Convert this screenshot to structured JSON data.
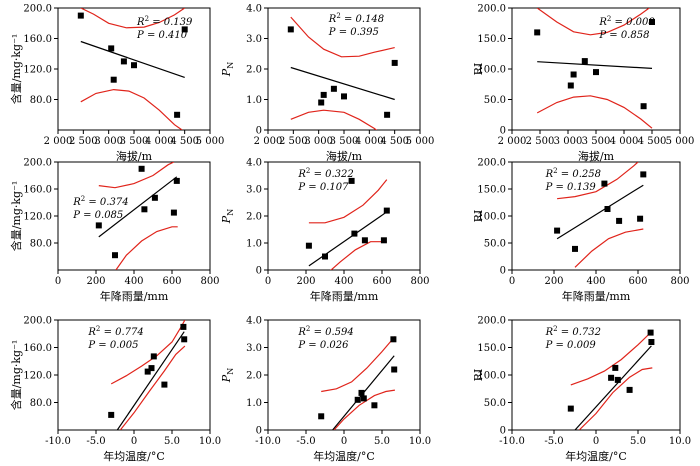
{
  "chart_data": [
    {
      "type": "scatter",
      "xlabel": "海拔/m",
      "ylabel": "含量/mg·kg⁻¹",
      "xlim": [
        2000,
        5000
      ],
      "ylim": [
        40,
        200
      ],
      "xticks": [
        2000,
        2500,
        3000,
        3500,
        4000,
        4500,
        5000
      ],
      "xtick_labels": [
        "2 000",
        "2 500",
        "3 000",
        "3 500",
        "4 000",
        "4 500",
        "5 000"
      ],
      "yticks": [
        80,
        120,
        160,
        200
      ],
      "ytick_labels": [
        "80.0",
        "120.0",
        "160.0",
        "200.0"
      ],
      "stat_lines": [
        "R² = 0.139",
        "P = 0.410"
      ],
      "stats_loc": "top-right",
      "x": [
        2450,
        3050,
        3100,
        3300,
        3500,
        4350,
        4500
      ],
      "y": [
        190,
        147,
        106,
        130,
        125,
        60,
        172
      ],
      "fit": [
        [
          2450,
          156
        ],
        [
          4500,
          109
        ]
      ],
      "ci_upper": [
        [
          2450,
          200
        ],
        [
          2700,
          192
        ],
        [
          3000,
          180
        ],
        [
          3350,
          174
        ],
        [
          3700,
          175
        ],
        [
          4000,
          181
        ],
        [
          4300,
          191
        ],
        [
          4500,
          200
        ]
      ],
      "ci_lower": [
        [
          2450,
          77
        ],
        [
          2750,
          88
        ],
        [
          3100,
          93
        ],
        [
          3400,
          91
        ],
        [
          3700,
          82
        ],
        [
          4000,
          66
        ],
        [
          4300,
          47
        ],
        [
          4450,
          40
        ]
      ]
    },
    {
      "type": "scatter",
      "xlabel": "海拔/m",
      "ylabel": "PN",
      "xlim": [
        2000,
        5000
      ],
      "ylim": [
        0,
        4
      ],
      "xticks": [
        2000,
        2500,
        3000,
        3500,
        4000,
        4500,
        5000
      ],
      "xtick_labels": [
        "2 000",
        "2 500",
        "3 000",
        "3 500",
        "4 000",
        "4 500",
        "5 000"
      ],
      "yticks": [
        0,
        1,
        2,
        3,
        4
      ],
      "ytick_labels": [
        "0",
        "1.0",
        "2.0",
        "3.0",
        "4.0"
      ],
      "stat_lines": [
        "R² = 0.148",
        "P = 0.395"
      ],
      "stats_loc": "top-center",
      "x": [
        2450,
        3050,
        3100,
        3300,
        3500,
        4350,
        4500
      ],
      "y": [
        3.3,
        0.9,
        1.15,
        1.35,
        1.1,
        0.5,
        2.2
      ],
      "fit": [
        [
          2450,
          2.05
        ],
        [
          4500,
          1.0
        ]
      ],
      "ci_upper": [
        [
          2450,
          3.7
        ],
        [
          2800,
          3.05
        ],
        [
          3100,
          2.65
        ],
        [
          3450,
          2.4
        ],
        [
          3800,
          2.42
        ],
        [
          4100,
          2.55
        ],
        [
          4500,
          2.7
        ]
      ],
      "ci_lower": [
        [
          2450,
          0.35
        ],
        [
          2800,
          0.58
        ],
        [
          3100,
          0.65
        ],
        [
          3500,
          0.58
        ],
        [
          3800,
          0.35
        ],
        [
          4100,
          0.05
        ],
        [
          4400,
          -0.35
        ]
      ]
    },
    {
      "type": "scatter",
      "xlabel": "海拔/m",
      "ylabel": "RI",
      "xlim": [
        2000,
        5000
      ],
      "ylim": [
        0,
        200
      ],
      "xticks": [
        2000,
        2500,
        3000,
        3500,
        4000,
        4500,
        5000
      ],
      "xtick_labels": [
        "2 000",
        "2 500",
        "3 000",
        "3 500",
        "4 000",
        "4 500",
        "5 000"
      ],
      "yticks": [
        0,
        50,
        100,
        150,
        200
      ],
      "ytick_labels": [
        "0",
        "50.0",
        "100.0",
        "150.0",
        "200.0"
      ],
      "stat_lines": [
        "R² = 0.008",
        "P = 0.858"
      ],
      "stats_loc": "top-right",
      "x": [
        2450,
        3050,
        3100,
        3300,
        3500,
        4350,
        4500
      ],
      "y": [
        160,
        73,
        91,
        113,
        95,
        39,
        177
      ],
      "fit": [
        [
          2450,
          112
        ],
        [
          4500,
          101
        ]
      ],
      "ci_upper": [
        [
          2450,
          200
        ],
        [
          2800,
          177
        ],
        [
          3100,
          161
        ],
        [
          3400,
          156
        ],
        [
          3700,
          160
        ],
        [
          4000,
          172
        ],
        [
          4300,
          190
        ],
        [
          4450,
          200
        ]
      ],
      "ci_lower": [
        [
          2450,
          28
        ],
        [
          2800,
          45
        ],
        [
          3100,
          54
        ],
        [
          3400,
          56
        ],
        [
          3700,
          50
        ],
        [
          4000,
          37
        ],
        [
          4300,
          18
        ],
        [
          4500,
          3
        ]
      ]
    },
    {
      "type": "scatter",
      "xlabel": "年降雨量/mm",
      "ylabel": "含量/mg·kg⁻¹",
      "xlim": [
        0,
        800
      ],
      "ylim": [
        40,
        200
      ],
      "xticks": [
        0,
        200,
        400,
        600,
        800
      ],
      "xtick_labels": [
        "0",
        "200",
        "400",
        "600",
        "800"
      ],
      "yticks": [
        80,
        120,
        160,
        200
      ],
      "ytick_labels": [
        "80.0",
        "120.0",
        "160.0",
        "200.0"
      ],
      "stat_lines": [
        "R² = 0.374",
        "P = 0.085"
      ],
      "stats_loc": "middle-left",
      "x": [
        215,
        300,
        440,
        455,
        510,
        610,
        625
      ],
      "y": [
        106,
        62,
        190,
        130,
        147,
        125,
        172
      ],
      "fit": [
        [
          215,
          89
        ],
        [
          625,
          178
        ]
      ],
      "ci_upper": [
        [
          215,
          165
        ],
        [
          300,
          162
        ],
        [
          400,
          168
        ],
        [
          500,
          180
        ],
        [
          580,
          196
        ],
        [
          610,
          200
        ]
      ],
      "ci_lower": [
        [
          305,
          40
        ],
        [
          360,
          62
        ],
        [
          440,
          83
        ],
        [
          520,
          97
        ],
        [
          600,
          104
        ],
        [
          630,
          104
        ]
      ]
    },
    {
      "type": "scatter",
      "xlabel": "年降雨量/mm",
      "ylabel": "PN",
      "xlim": [
        0,
        800
      ],
      "ylim": [
        0,
        4
      ],
      "xticks": [
        0,
        200,
        400,
        600,
        800
      ],
      "xtick_labels": [
        "0",
        "200",
        "400",
        "600",
        "800"
      ],
      "yticks": [
        0,
        1,
        2,
        3,
        4
      ],
      "ytick_labels": [
        "0",
        "1.0",
        "2.0",
        "3.0",
        "4.0"
      ],
      "stat_lines": [
        "R² = 0.322",
        "P = 0.107"
      ],
      "stats_loc": "top-left",
      "x": [
        215,
        300,
        440,
        455,
        510,
        610,
        625
      ],
      "y": [
        0.9,
        0.5,
        3.3,
        1.35,
        1.1,
        1.1,
        2.2
      ],
      "fit": [
        [
          215,
          0.15
        ],
        [
          625,
          2.15
        ]
      ],
      "ci_upper": [
        [
          215,
          1.75
        ],
        [
          300,
          1.75
        ],
        [
          400,
          1.95
        ],
        [
          500,
          2.4
        ],
        [
          580,
          2.95
        ],
        [
          625,
          3.35
        ]
      ],
      "ci_lower": [
        [
          300,
          -0.2
        ],
        [
          380,
          0.3
        ],
        [
          460,
          0.75
        ],
        [
          540,
          1.05
        ],
        [
          625,
          1.05
        ]
      ]
    },
    {
      "type": "scatter",
      "xlabel": "年降雨量/mm",
      "ylabel": "RI",
      "xlim": [
        0,
        800
      ],
      "ylim": [
        0,
        200
      ],
      "xticks": [
        0,
        200,
        400,
        600,
        800
      ],
      "xtick_labels": [
        "0",
        "200",
        "400",
        "600",
        "800"
      ],
      "yticks": [
        0,
        50,
        100,
        150,
        200
      ],
      "ytick_labels": [
        "0",
        "50.0",
        "100.0",
        "150.0",
        "200.0"
      ],
      "stat_lines": [
        "R² = 0.258",
        "P = 0.139"
      ],
      "stats_loc": "top-left",
      "x": [
        215,
        300,
        440,
        455,
        510,
        610,
        625
      ],
      "y": [
        73,
        39,
        160,
        113,
        91,
        95,
        177
      ],
      "fit": [
        [
          215,
          58
        ],
        [
          625,
          157
        ]
      ],
      "ci_upper": [
        [
          215,
          132
        ],
        [
          300,
          136
        ],
        [
          400,
          145
        ],
        [
          500,
          168
        ],
        [
          580,
          193
        ],
        [
          600,
          200
        ]
      ],
      "ci_lower": [
        [
          300,
          5
        ],
        [
          380,
          35
        ],
        [
          460,
          58
        ],
        [
          540,
          70
        ],
        [
          625,
          76
        ]
      ]
    },
    {
      "type": "scatter",
      "xlabel": "年均温度/°C",
      "ylabel": "含量/mg·kg⁻¹",
      "xlim": [
        -10,
        10
      ],
      "ylim": [
        40,
        200
      ],
      "xticks": [
        -10,
        -5,
        0,
        5,
        10
      ],
      "xtick_labels": [
        "-10.0",
        "-5.0",
        "0",
        "5.0",
        "10.0"
      ],
      "yticks": [
        80,
        120,
        160,
        200
      ],
      "ytick_labels": [
        "80.0",
        "120.0",
        "160.0",
        "200.0"
      ],
      "stat_lines": [
        "R² = 0.774",
        "P = 0.005"
      ],
      "stats_loc": "top-left",
      "x": [
        -3.0,
        1.8,
        2.3,
        2.6,
        4.0,
        6.5,
        6.6
      ],
      "y": [
        62,
        125,
        130,
        147,
        106,
        190,
        172
      ],
      "fit": [
        [
          -2.2,
          40
        ],
        [
          6.6,
          183
        ]
      ],
      "ci_upper": [
        [
          -3.0,
          107
        ],
        [
          -1,
          119
        ],
        [
          1,
          133
        ],
        [
          3,
          148
        ],
        [
          5,
          168
        ],
        [
          6.2,
          190
        ],
        [
          6.7,
          200
        ]
      ],
      "ci_lower": [
        [
          -1.8,
          40
        ],
        [
          0,
          65
        ],
        [
          2,
          96
        ],
        [
          4,
          126
        ],
        [
          5.5,
          150
        ],
        [
          6.7,
          162
        ]
      ]
    },
    {
      "type": "scatter",
      "xlabel": "年均温度/°C",
      "ylabel": "PN",
      "xlim": [
        -10,
        10
      ],
      "ylim": [
        0,
        4
      ],
      "xticks": [
        -10,
        -5,
        0,
        5,
        10
      ],
      "xtick_labels": [
        "-10.0",
        "-5.0",
        "0",
        "5.0",
        "10.0"
      ],
      "yticks": [
        0,
        1,
        2,
        3,
        4
      ],
      "ytick_labels": [
        "0",
        "1.0",
        "2.0",
        "3.0",
        "4.0"
      ],
      "stat_lines": [
        "R² = 0.594",
        "P = 0.026"
      ],
      "stats_loc": "top-left",
      "x": [
        -3.0,
        1.8,
        2.3,
        2.6,
        4.0,
        6.5,
        6.6
      ],
      "y": [
        0.5,
        1.1,
        1.35,
        1.15,
        0.9,
        3.3,
        2.2
      ],
      "fit": [
        [
          -1.5,
          0
        ],
        [
          6.6,
          2.7
        ]
      ],
      "ci_upper": [
        [
          -3.0,
          1.4
        ],
        [
          -1,
          1.5
        ],
        [
          1,
          1.75
        ],
        [
          3,
          2.25
        ],
        [
          5,
          2.85
        ],
        [
          6.7,
          3.4
        ]
      ],
      "ci_lower": [
        [
          -1.8,
          -0.15
        ],
        [
          0,
          0.4
        ],
        [
          2,
          0.9
        ],
        [
          4,
          1.25
        ],
        [
          5.5,
          1.4
        ],
        [
          6.7,
          1.45
        ]
      ]
    },
    {
      "type": "scatter",
      "xlabel": "年均温度/°C",
      "ylabel": "RI",
      "xlim": [
        -10,
        10
      ],
      "ylim": [
        0,
        200
      ],
      "xticks": [
        -10,
        -5,
        0,
        5,
        10
      ],
      "xtick_labels": [
        "-10.0",
        "-5.0",
        "0",
        "5.0",
        "10.0"
      ],
      "yticks": [
        0,
        50,
        100,
        150,
        200
      ],
      "ytick_labels": [
        "0",
        "50.0",
        "100.0",
        "150.0",
        "200.0"
      ],
      "stat_lines": [
        "R² = 0.732",
        "P = 0.009"
      ],
      "stats_loc": "top-left",
      "x": [
        -3.0,
        1.8,
        2.3,
        2.6,
        4.0,
        6.5,
        6.6
      ],
      "y": [
        39,
        95,
        113,
        91,
        73,
        177,
        160
      ],
      "fit": [
        [
          -2.5,
          0
        ],
        [
          6.6,
          153
        ]
      ],
      "ci_upper": [
        [
          -3.0,
          82
        ],
        [
          -1,
          93
        ],
        [
          1,
          107
        ],
        [
          3,
          128
        ],
        [
          5,
          155
        ],
        [
          6.7,
          180
        ]
      ],
      "ci_lower": [
        [
          -2.0,
          0
        ],
        [
          0,
          30
        ],
        [
          2,
          68
        ],
        [
          4,
          96
        ],
        [
          5.5,
          110
        ],
        [
          6.7,
          113
        ]
      ]
    }
  ]
}
